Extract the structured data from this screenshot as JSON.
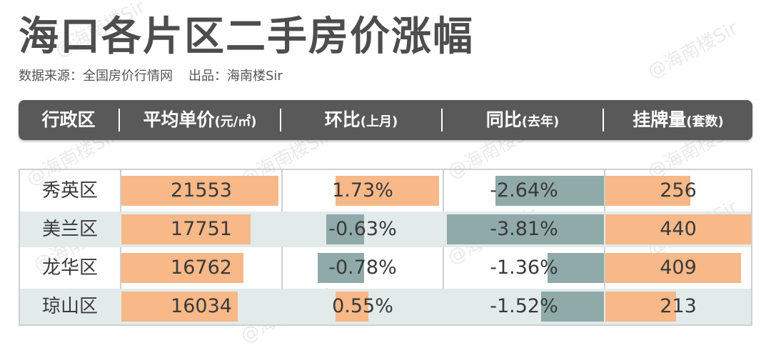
{
  "title": "海口各片区二手房价涨幅",
  "subtitle": {
    "source": "数据来源：全国房价行情网",
    "credit": "出品：海南楼Sir"
  },
  "watermark": "@海南楼Sir",
  "colors": {
    "header_bg": "#595959",
    "positive_bar": "#f8b888",
    "negative_bar": "#8faaa9",
    "alt_row": "#e2ebea"
  },
  "table": {
    "columns": [
      {
        "label": "行政区",
        "unit": ""
      },
      {
        "label": "平均单价",
        "unit": "(元/㎡)"
      },
      {
        "label": "环比",
        "unit": "(上月)"
      },
      {
        "label": "同比",
        "unit": "(去年)"
      },
      {
        "label": "挂牌量",
        "unit": "(套数)"
      }
    ],
    "rows": [
      {
        "district": "秀英区",
        "price": "21553",
        "mom": "1.73%",
        "yoy": "-2.64%",
        "listings": "256"
      },
      {
        "district": "美兰区",
        "price": "17751",
        "mom": "-0.63%",
        "yoy": "-3.81%",
        "listings": "440"
      },
      {
        "district": "龙华区",
        "price": "16762",
        "mom": "-0.78%",
        "yoy": "-1.36%",
        "listings": "409"
      },
      {
        "district": "琼山区",
        "price": "16034",
        "mom": "0.55%",
        "yoy": "-1.52%",
        "listings": "213"
      }
    ]
  },
  "chart_data": {
    "type": "table",
    "categories": [
      "秀英区",
      "美兰区",
      "龙华区",
      "琼山区"
    ],
    "series": [
      {
        "name": "平均单价(元/㎡)",
        "values": [
          21553,
          17751,
          16762,
          16034
        ]
      },
      {
        "name": "环比(上月)",
        "values": [
          1.73,
          -0.63,
          -0.78,
          0.55
        ]
      },
      {
        "name": "同比(去年)",
        "values": [
          -2.64,
          -3.81,
          -1.36,
          -1.52
        ]
      },
      {
        "name": "挂牌量(套数)",
        "values": [
          256,
          440,
          409,
          213
        ]
      }
    ]
  }
}
